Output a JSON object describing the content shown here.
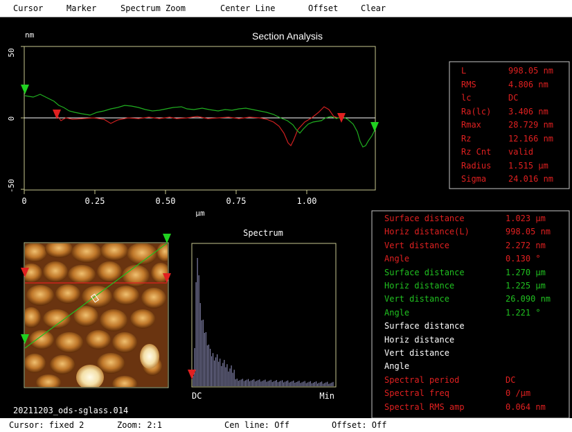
{
  "menu": {
    "items": [
      "Cursor",
      "Marker",
      "Spectrum Zoom",
      "Center Line",
      "Offset",
      "Clear"
    ]
  },
  "section": {
    "title": "Section Analysis",
    "y_unit": "nm",
    "x_unit": "µm",
    "y_ticks": [
      "50",
      "0",
      "-50"
    ],
    "x_ticks": [
      "0",
      "0.25",
      "0.50",
      "0.75",
      "1.00"
    ]
  },
  "spectrum": {
    "title": "Spectrum",
    "x_left": "DC",
    "x_right": "Min"
  },
  "roughness": {
    "rows": [
      {
        "label": "L",
        "value": "998.05 nm"
      },
      {
        "label": "RMS",
        "value": "4.806 nm"
      },
      {
        "label": "lc",
        "value": "DC"
      },
      {
        "label": "Ra(lc)",
        "value": "3.406 nm"
      },
      {
        "label": "Rmax",
        "value": "28.729 nm"
      },
      {
        "label": "Rz",
        "value": "12.166 nm"
      },
      {
        "label": "Rz Cnt",
        "value": "valid"
      },
      {
        "label": "Radius",
        "value": "1.515 µm"
      },
      {
        "label": "Sigma",
        "value": "24.016 nm"
      }
    ]
  },
  "measurements": {
    "rows": [
      {
        "label": "Surface distance",
        "value": "1.023 µm",
        "color": "#e02020"
      },
      {
        "label": "Horiz distance(L)",
        "value": "998.05 nm",
        "color": "#e02020"
      },
      {
        "label": "Vert distance",
        "value": "2.272 nm",
        "color": "#e02020"
      },
      {
        "label": "Angle",
        "value": "0.130 °",
        "color": "#e02020"
      },
      {
        "label": "Surface distance",
        "value": "1.270 µm",
        "color": "#20c020"
      },
      {
        "label": "Horiz distance",
        "value": "1.225 µm",
        "color": "#20c020"
      },
      {
        "label": "Vert distance",
        "value": "26.090 nm",
        "color": "#20c020"
      },
      {
        "label": "Angle",
        "value": "1.221 °",
        "color": "#20c020"
      },
      {
        "label": "Surface distance",
        "value": "",
        "color": "#ffffff"
      },
      {
        "label": "Horiz distance",
        "value": "",
        "color": "#ffffff"
      },
      {
        "label": "Vert distance",
        "value": "",
        "color": "#ffffff"
      },
      {
        "label": "Angle",
        "value": "",
        "color": "#ffffff"
      },
      {
        "label": "Spectral period",
        "value": "DC",
        "color": "#e02020"
      },
      {
        "label": "Spectral freq",
        "value": "0 /µm",
        "color": "#e02020"
      },
      {
        "label": "Spectral RMS amp",
        "value": "0.064 nm",
        "color": "#e02020"
      }
    ]
  },
  "filename": "20211203_ods-sglass.014",
  "status": {
    "cursor": "Cursor: fixed 2",
    "zoom": "Zoom: 2:1",
    "cen_line": "Cen line: Off",
    "offset": "Offset: Off"
  },
  "colors": {
    "red_cursor": "#e02020",
    "green_cursor": "#20d020",
    "frame": "#c8c890",
    "spectrum_bar": "#9a9ac8"
  }
}
